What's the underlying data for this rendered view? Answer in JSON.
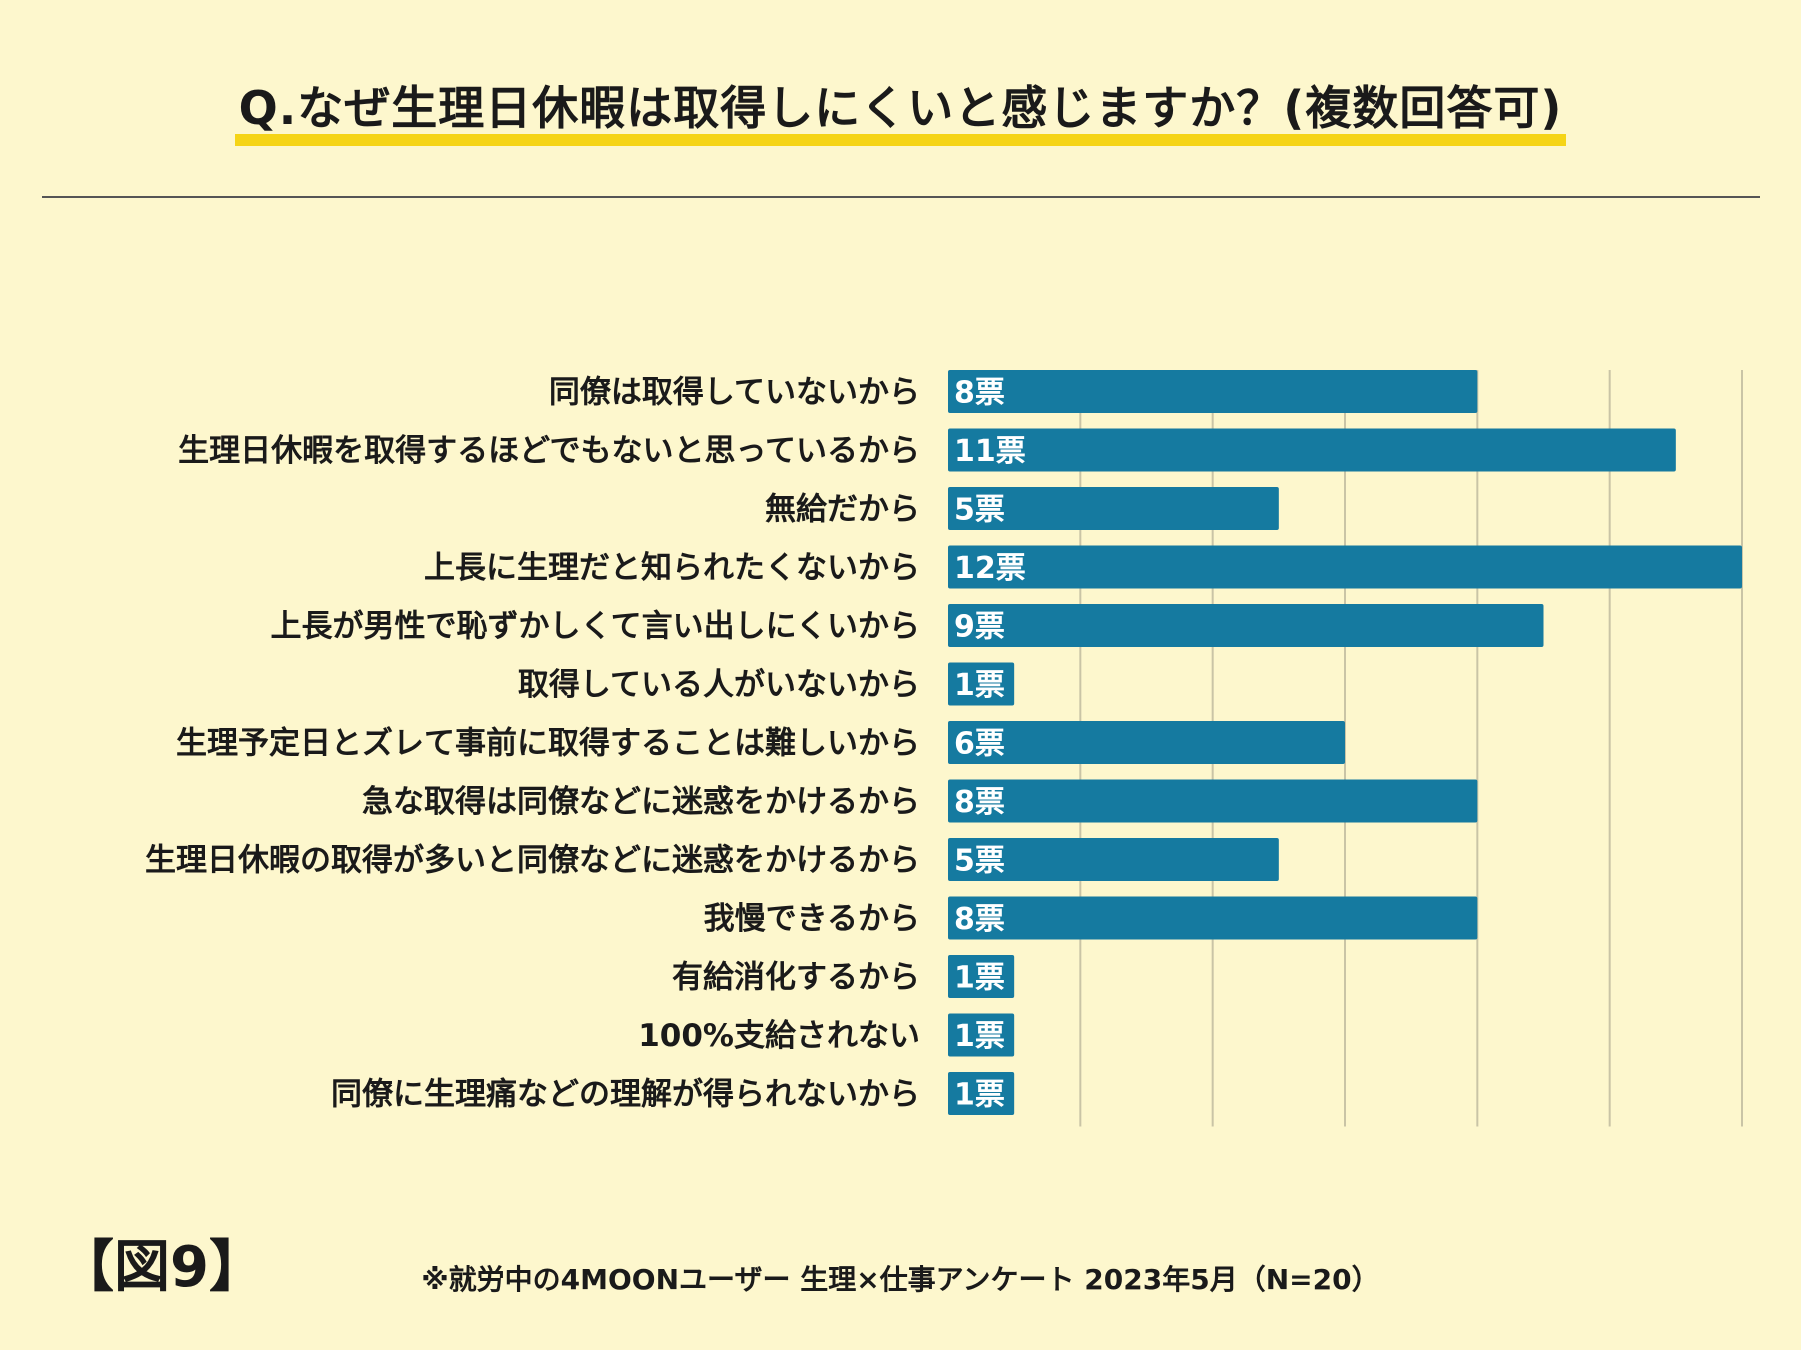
{
  "title": "Q.なぜ生理日休暇は取得しにくいと感じますか？(複数回答可)",
  "figure_label": "【図9】",
  "footnote": "※就労中の4MOONユーザー 生理×仕事アンケート 2023年5月（N=20）",
  "colors": {
    "background": "#fdf7cd",
    "bar": "#157aa0",
    "highlight": "#f5d417",
    "grid": "#c9c4a6"
  },
  "chart_data": {
    "type": "bar",
    "orientation": "horizontal",
    "value_suffix": "票",
    "xlim": [
      0,
      12
    ],
    "x_gridlines": [
      2,
      4,
      6,
      8,
      10,
      12
    ],
    "categories": [
      "同僚は取得していないから",
      "生理日休暇を取得するほどでもないと思っているから",
      "無給だから",
      "上長に生理だと知られたくないから",
      "上長が男性で恥ずかしくて言い出しにくいから",
      "取得している人がいないから",
      "生理予定日とズレて事前に取得することは難しいから",
      "急な取得は同僚などに迷惑をかけるから",
      "生理日休暇の取得が多いと同僚などに迷惑をかけるから",
      "我慢できるから",
      "有給消化するから",
      "100%支給されない",
      "同僚に生理痛などの理解が得られないから"
    ],
    "values": [
      8,
      11,
      5,
      12,
      9,
      1,
      6,
      8,
      5,
      8,
      1,
      1,
      1
    ],
    "data_labels": [
      "8票",
      "11票",
      "5票",
      "12票",
      "9票",
      "1票",
      "6票",
      "8票",
      "5票",
      "8票",
      "1票",
      "1票",
      "1票"
    ]
  }
}
